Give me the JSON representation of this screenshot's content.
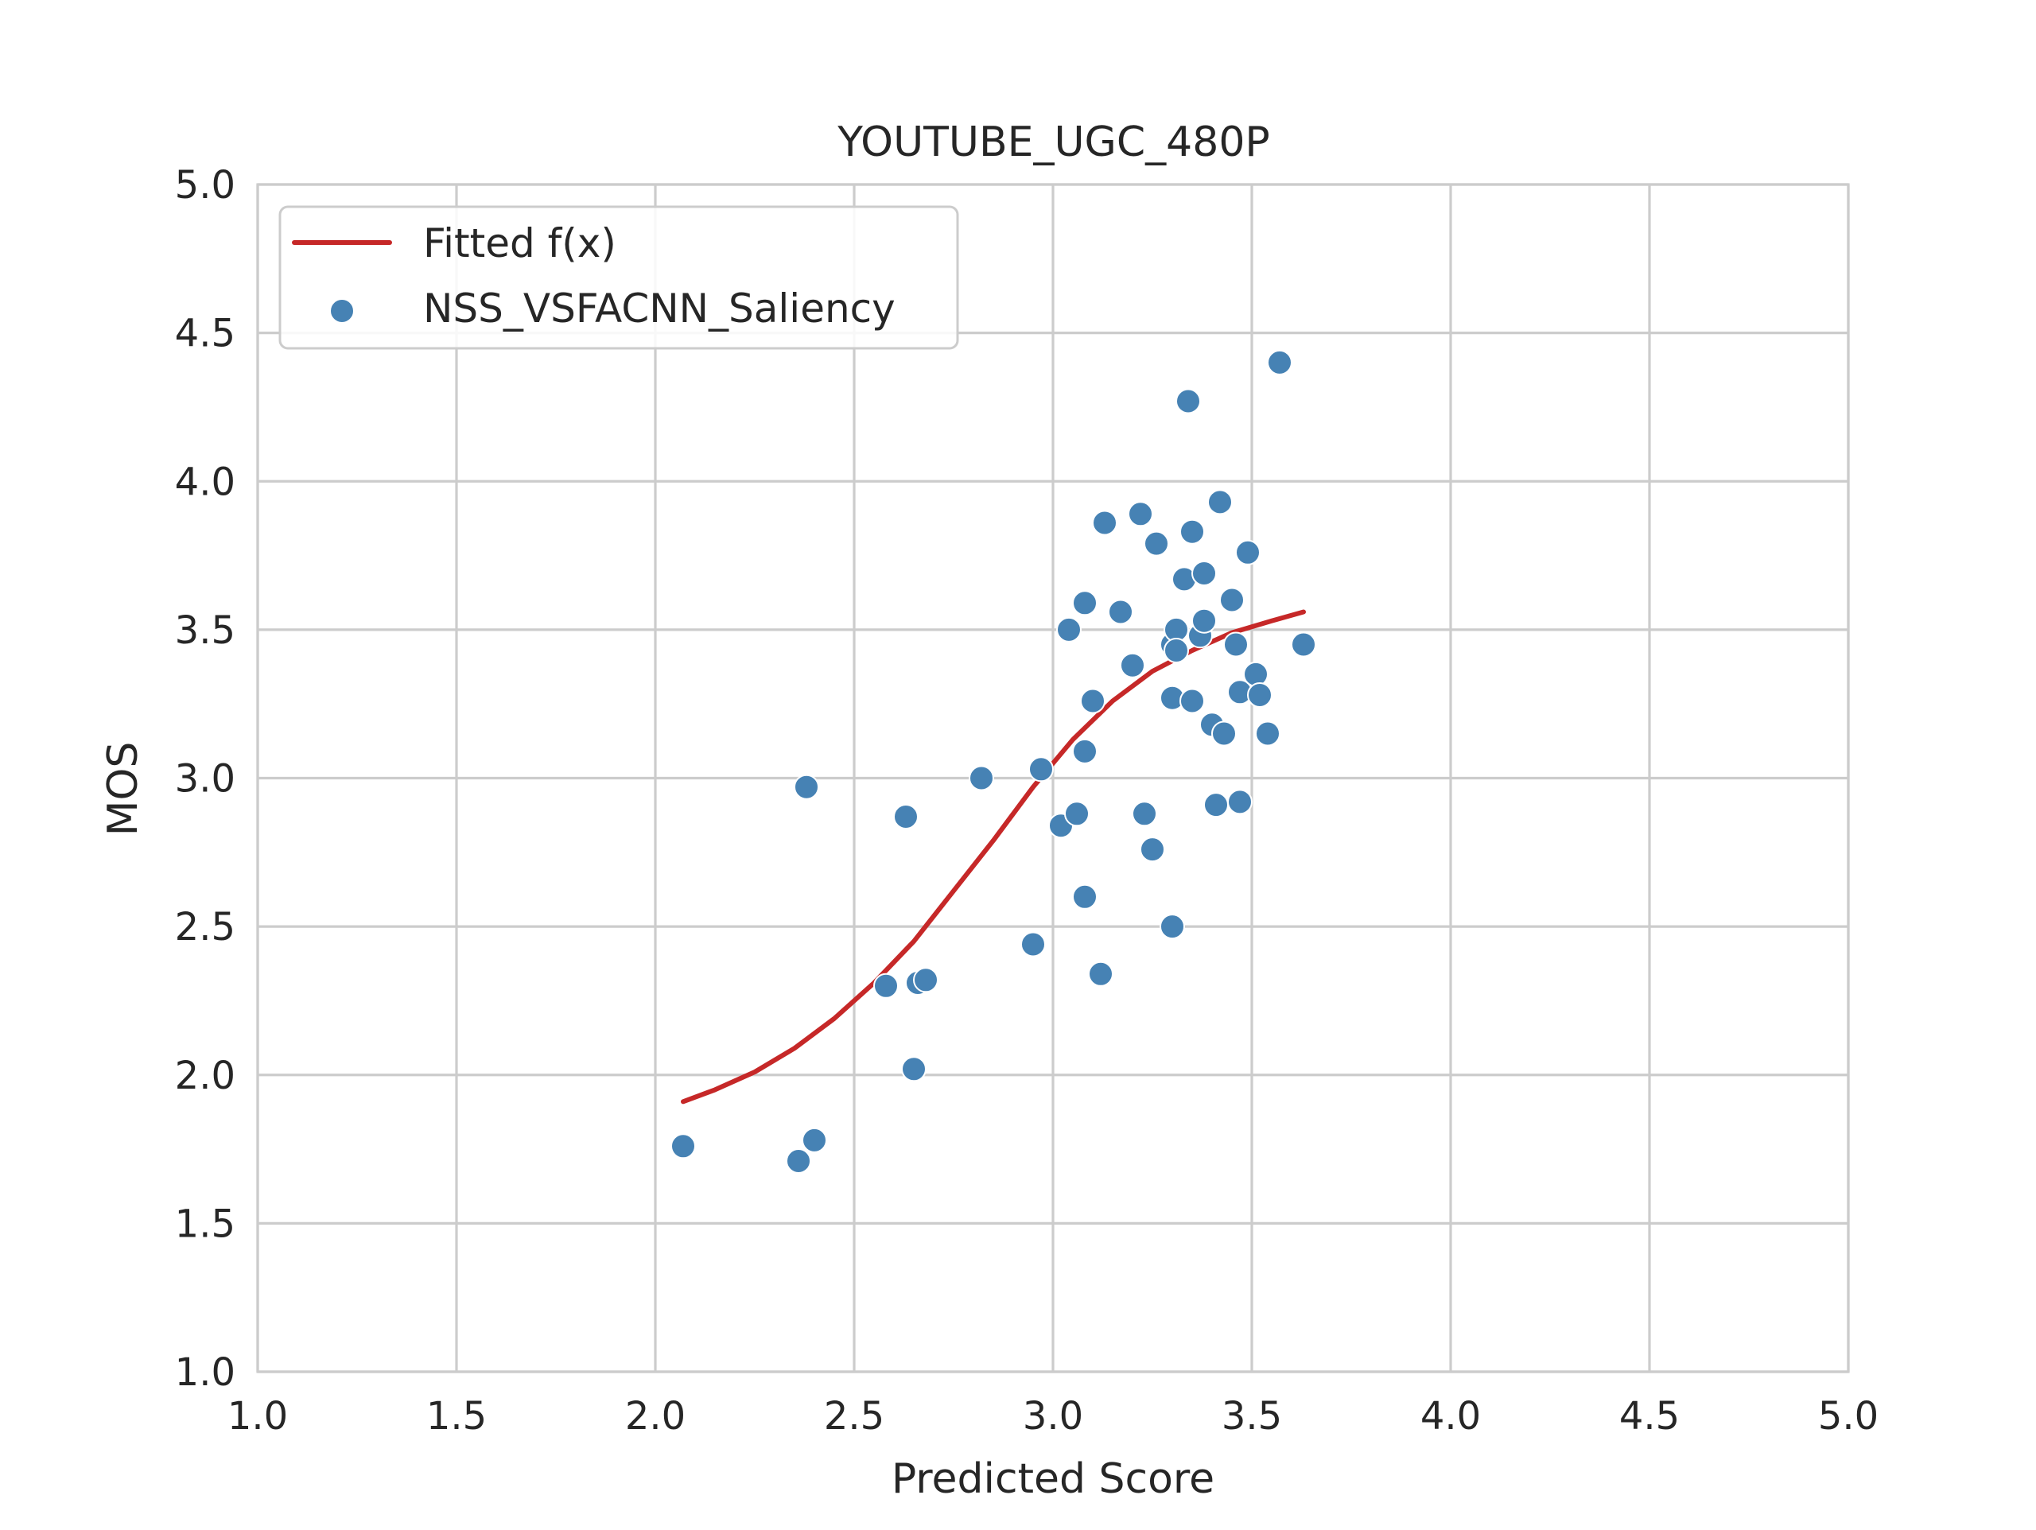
{
  "chart_data": {
    "type": "scatter",
    "title": "YOUTUBE_UGC_480P",
    "xlabel": "Predicted Score",
    "ylabel": "MOS",
    "xlim": [
      1.0,
      5.0
    ],
    "ylim": [
      1.0,
      5.0
    ],
    "x_ticks": [
      "1.0",
      "1.5",
      "2.0",
      "2.5",
      "3.0",
      "3.5",
      "4.0",
      "4.5",
      "5.0"
    ],
    "y_ticks": [
      "1.0",
      "1.5",
      "2.0",
      "2.5",
      "3.0",
      "3.5",
      "4.0",
      "4.5",
      "5.0"
    ],
    "grid": true,
    "legend_placement": "upper-left",
    "colors": {
      "fit_line": "#c62828",
      "points": "#4682b4",
      "point_edge": "#ffffff",
      "grid": "#cccccc",
      "axes_edge": "#cccccc"
    },
    "series": [
      {
        "name": "Fitted f(x)",
        "kind": "line",
        "x": [
          2.07,
          2.15,
          2.25,
          2.35,
          2.45,
          2.55,
          2.65,
          2.75,
          2.85,
          2.95,
          3.05,
          3.15,
          3.25,
          3.35,
          3.45,
          3.55,
          3.63
        ],
        "y": [
          1.91,
          1.95,
          2.01,
          2.09,
          2.19,
          2.31,
          2.45,
          2.62,
          2.79,
          2.97,
          3.13,
          3.26,
          3.36,
          3.43,
          3.49,
          3.53,
          3.56
        ]
      },
      {
        "name": "NSS_VSFACNN_Saliency",
        "kind": "scatter",
        "points": [
          [
            2.07,
            1.76
          ],
          [
            2.36,
            1.71
          ],
          [
            2.38,
            2.97
          ],
          [
            2.4,
            1.78
          ],
          [
            2.58,
            2.3
          ],
          [
            2.63,
            2.87
          ],
          [
            2.65,
            2.02
          ],
          [
            2.66,
            2.31
          ],
          [
            2.68,
            2.32
          ],
          [
            2.82,
            3.0
          ],
          [
            2.95,
            2.44
          ],
          [
            2.97,
            3.03
          ],
          [
            3.02,
            2.84
          ],
          [
            3.04,
            3.5
          ],
          [
            3.06,
            2.88
          ],
          [
            3.08,
            3.59
          ],
          [
            3.08,
            3.09
          ],
          [
            3.08,
            2.6
          ],
          [
            3.1,
            3.26
          ],
          [
            3.12,
            2.34
          ],
          [
            3.13,
            3.86
          ],
          [
            3.17,
            3.56
          ],
          [
            3.2,
            3.38
          ],
          [
            3.22,
            3.89
          ],
          [
            3.23,
            2.88
          ],
          [
            3.25,
            2.76
          ],
          [
            3.26,
            3.79
          ],
          [
            3.3,
            3.45
          ],
          [
            3.3,
            3.27
          ],
          [
            3.3,
            2.5
          ],
          [
            3.31,
            3.5
          ],
          [
            3.31,
            3.43
          ],
          [
            3.33,
            3.67
          ],
          [
            3.34,
            4.27
          ],
          [
            3.35,
            3.83
          ],
          [
            3.35,
            3.26
          ],
          [
            3.37,
            3.48
          ],
          [
            3.38,
            3.69
          ],
          [
            3.38,
            3.53
          ],
          [
            3.4,
            3.18
          ],
          [
            3.41,
            2.91
          ],
          [
            3.42,
            3.93
          ],
          [
            3.43,
            3.15
          ],
          [
            3.45,
            3.6
          ],
          [
            3.46,
            3.45
          ],
          [
            3.47,
            3.29
          ],
          [
            3.47,
            2.92
          ],
          [
            3.49,
            3.76
          ],
          [
            3.51,
            3.35
          ],
          [
            3.52,
            3.28
          ],
          [
            3.54,
            3.15
          ],
          [
            3.57,
            4.4
          ],
          [
            3.63,
            3.45
          ]
        ]
      }
    ]
  }
}
